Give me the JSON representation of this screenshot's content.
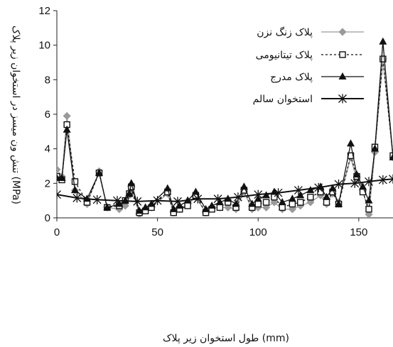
{
  "chart_data": {
    "type": "line",
    "title": "",
    "xlabel": "طول استخوان زیر پلاک (mm)",
    "ylabel": "تنش ون میسز در استخوان زیر پلاک (MPa)",
    "xlim": [
      0,
      167
    ],
    "ylim": [
      0,
      12
    ],
    "x_ticks": [
      "0",
      "50",
      "100",
      "150"
    ],
    "y_ticks": [
      "0",
      "2",
      "4",
      "6",
      "8",
      "10",
      "12"
    ],
    "legend_position": "top-right",
    "series": [
      {
        "name": "پلاک زنگ نزن",
        "color": "#9a9a9a",
        "marker": "diamond",
        "dash": "none",
        "points": [
          [
            0,
            2.8
          ],
          [
            2.5,
            2.4
          ],
          [
            5,
            5.9
          ],
          [
            9,
            1.6
          ],
          [
            15,
            0.8
          ],
          [
            21,
            2.7
          ],
          [
            25,
            0.6
          ],
          [
            31,
            0.5
          ],
          [
            34,
            0.7
          ],
          [
            36,
            1.3
          ],
          [
            37,
            1.8
          ],
          [
            41,
            0.2
          ],
          [
            44,
            0.5
          ],
          [
            47,
            0.6
          ],
          [
            55,
            1.4
          ],
          [
            58,
            0.3
          ],
          [
            61,
            0.5
          ],
          [
            65,
            0.8
          ],
          [
            69,
            1.2
          ],
          [
            74,
            0.3
          ],
          [
            77,
            0.6
          ],
          [
            81,
            0.6
          ],
          [
            85,
            0.6
          ],
          [
            89,
            0.5
          ],
          [
            93,
            1.5
          ],
          [
            97,
            0.5
          ],
          [
            100,
            0.6
          ],
          [
            104,
            0.6
          ],
          [
            108,
            0.9
          ],
          [
            112,
            0.5
          ],
          [
            117,
            0.5
          ],
          [
            121,
            0.7
          ],
          [
            126,
            0.9
          ],
          [
            131,
            1.3
          ],
          [
            134,
            0.8
          ],
          [
            137,
            1.4
          ],
          [
            140,
            0.9
          ],
          [
            146,
            3.5
          ],
          [
            149,
            2.2
          ],
          [
            152,
            1.6
          ],
          [
            155,
            0.2
          ],
          [
            158,
            3.8
          ],
          [
            162,
            9.2
          ],
          [
            167,
            3.5
          ]
        ]
      },
      {
        "name": "پلاک تیتانیومی",
        "color": "#111111",
        "marker": "square",
        "dash": "3,3",
        "points": [
          [
            0,
            2.4
          ],
          [
            2.5,
            2.2
          ],
          [
            5,
            5.4
          ],
          [
            9,
            2.1
          ],
          [
            15,
            0.9
          ],
          [
            21,
            2.6
          ],
          [
            25,
            0.6
          ],
          [
            31,
            0.7
          ],
          [
            34,
            1.0
          ],
          [
            36,
            1.4
          ],
          [
            37,
            1.8
          ],
          [
            41,
            0.3
          ],
          [
            44,
            0.4
          ],
          [
            47,
            0.6
          ],
          [
            55,
            1.5
          ],
          [
            58,
            0.3
          ],
          [
            61,
            0.5
          ],
          [
            65,
            0.7
          ],
          [
            69,
            1.3
          ],
          [
            74,
            0.3
          ],
          [
            77,
            0.5
          ],
          [
            81,
            0.6
          ],
          [
            85,
            0.9
          ],
          [
            89,
            0.6
          ],
          [
            93,
            1.6
          ],
          [
            97,
            0.6
          ],
          [
            100,
            0.8
          ],
          [
            104,
            0.9
          ],
          [
            108,
            1.2
          ],
          [
            112,
            0.6
          ],
          [
            117,
            0.8
          ],
          [
            121,
            0.9
          ],
          [
            126,
            1.2
          ],
          [
            131,
            1.5
          ],
          [
            134,
            0.9
          ],
          [
            137,
            1.5
          ],
          [
            140,
            0.8
          ],
          [
            146,
            3.6
          ],
          [
            149,
            2.4
          ],
          [
            152,
            1.5
          ],
          [
            155,
            0.5
          ],
          [
            158,
            4.1
          ],
          [
            162,
            9.2
          ],
          [
            167,
            3.6
          ]
        ]
      },
      {
        "name": "پلاک مدرج",
        "color": "#111111",
        "marker": "triangle",
        "dash": "none",
        "points": [
          [
            0,
            2.3
          ],
          [
            2.5,
            2.3
          ],
          [
            5,
            5.1
          ],
          [
            9,
            1.6
          ],
          [
            15,
            1.1
          ],
          [
            21,
            2.6
          ],
          [
            25,
            0.6
          ],
          [
            31,
            0.8
          ],
          [
            34,
            1.0
          ],
          [
            36,
            1.4
          ],
          [
            37,
            2.0
          ],
          [
            41,
            0.4
          ],
          [
            44,
            0.6
          ],
          [
            47,
            0.8
          ],
          [
            55,
            1.7
          ],
          [
            58,
            0.5
          ],
          [
            61,
            0.7
          ],
          [
            65,
            1.0
          ],
          [
            69,
            1.5
          ],
          [
            74,
            0.5
          ],
          [
            77,
            0.7
          ],
          [
            81,
            0.9
          ],
          [
            85,
            1.1
          ],
          [
            89,
            0.8
          ],
          [
            93,
            1.8
          ],
          [
            97,
            0.8
          ],
          [
            100,
            1.1
          ],
          [
            104,
            1.3
          ],
          [
            108,
            1.5
          ],
          [
            112,
            0.9
          ],
          [
            117,
            1.1
          ],
          [
            121,
            1.3
          ],
          [
            126,
            1.6
          ],
          [
            131,
            1.8
          ],
          [
            134,
            1.2
          ],
          [
            137,
            1.7
          ],
          [
            140,
            0.8
          ],
          [
            146,
            4.3
          ],
          [
            149,
            2.5
          ],
          [
            152,
            1.8
          ],
          [
            155,
            1.0
          ],
          [
            158,
            4.0
          ],
          [
            162,
            10.2
          ],
          [
            167,
            3.5
          ]
        ]
      },
      {
        "name": "استخوان سالم",
        "color": "#111111",
        "marker": "star",
        "dash": "none",
        "points": [
          [
            0,
            1.35
          ],
          [
            10,
            1.15
          ],
          [
            20,
            1.05
          ],
          [
            30,
            1.0
          ],
          [
            40,
            0.95
          ],
          [
            50,
            1.0
          ],
          [
            60,
            0.95
          ],
          [
            70,
            1.1
          ],
          [
            80,
            1.1
          ],
          [
            90,
            1.2
          ],
          [
            100,
            1.35
          ],
          [
            110,
            1.45
          ],
          [
            120,
            1.6
          ],
          [
            130,
            1.75
          ],
          [
            140,
            1.95
          ],
          [
            148,
            2.0
          ],
          [
            155,
            2.1
          ],
          [
            162,
            2.2
          ],
          [
            167,
            2.25
          ]
        ]
      }
    ]
  }
}
